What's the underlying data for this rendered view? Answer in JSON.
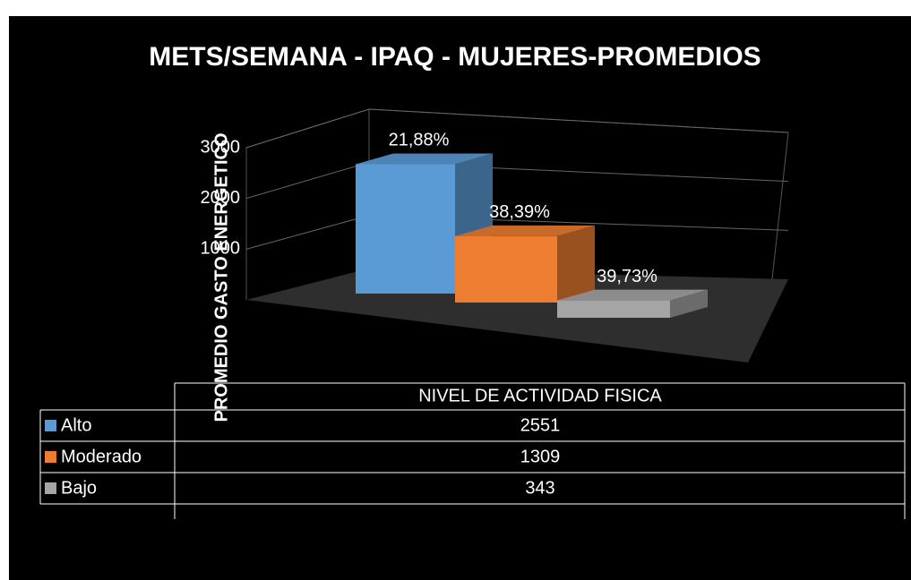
{
  "chart_data": {
    "type": "bar3d",
    "title": "METS/SEMANA -  IPAQ - MUJERES-PROMEDIOS",
    "y_axis_label": "PROMEDIO  GASTO ENERGETICO",
    "categories": [
      "NIVEL DE ACTIVIDAD FISICA"
    ],
    "series": [
      {
        "name": "Alto",
        "color": "#5b9bd5",
        "values": [
          2551
        ]
      },
      {
        "name": "Moderado",
        "color": "#ed7d31",
        "values": [
          1309
        ]
      },
      {
        "name": "Bajo",
        "color": "#a5a5a5",
        "values": [
          343
        ]
      }
    ],
    "annotations": [
      "21,88%",
      "38,39%",
      "39,73%"
    ],
    "ylim": [
      0,
      3000
    ],
    "yticks": [
      1000,
      2000,
      3000
    ],
    "grid": true,
    "data_table": true
  }
}
